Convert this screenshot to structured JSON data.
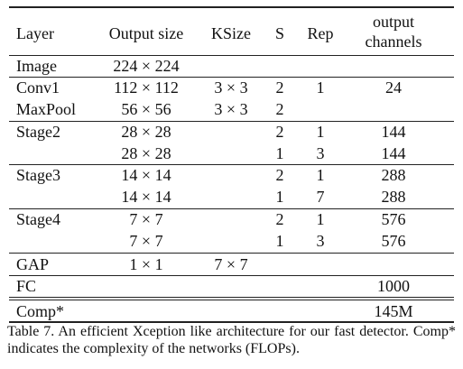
{
  "table": {
    "header": [
      "Layer",
      "Output size",
      "KSize",
      "S",
      "Rep",
      "output channels"
    ],
    "rows": [
      [
        "Image",
        "224 × 224",
        null,
        null,
        null,
        null
      ],
      [
        "Conv1",
        "112 × 112",
        "3 × 3",
        "2",
        "1",
        "24"
      ],
      [
        "MaxPool",
        "56 × 56",
        "3 × 3",
        "2",
        null,
        null
      ],
      [
        "Stage2",
        "28 × 28",
        null,
        "2",
        "1",
        "144"
      ],
      [
        null,
        "28 × 28",
        null,
        "1",
        "3",
        "144"
      ],
      [
        "Stage3",
        "14 × 14",
        null,
        "2",
        "1",
        "288"
      ],
      [
        null,
        "14 × 14",
        null,
        "1",
        "7",
        "288"
      ],
      [
        "Stage4",
        "7 × 7",
        null,
        "2",
        "1",
        "576"
      ],
      [
        null,
        "7 × 7",
        null,
        "1",
        "3",
        "576"
      ],
      [
        "GAP",
        "1 × 1",
        "7 × 7",
        null,
        null,
        null
      ],
      [
        "FC",
        null,
        null,
        null,
        null,
        "1000"
      ],
      [
        "Comp*",
        null,
        null,
        null,
        null,
        "145M"
      ]
    ],
    "caption": "Table 7. An efficient Xception like architecture for our fast detector. Comp* indicates the complexity of the networks (FLOPs)."
  }
}
